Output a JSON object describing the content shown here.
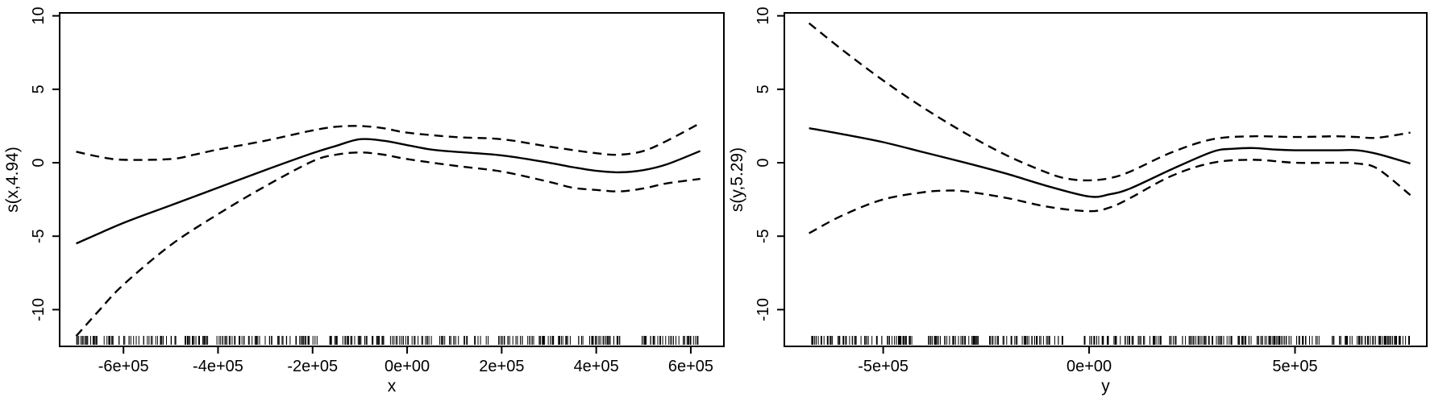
{
  "chart_data": [
    {
      "type": "line",
      "xlabel": "x",
      "ylabel": "s(x,4.94)",
      "xlim": [
        -735000,
        670000
      ],
      "ylim": [
        -12.5,
        10.2
      ],
      "xticks": [
        -600000,
        -400000,
        -200000,
        0,
        200000,
        400000,
        600000
      ],
      "xtick_labels": [
        "-6e+05",
        "-4e+05",
        "-2e+05",
        "0e+00",
        "2e+05",
        "4e+05",
        "6e+05"
      ],
      "yticks": [
        -10,
        -5,
        0,
        5,
        10
      ],
      "ytick_labels": [
        "-10",
        "-5",
        "0",
        "5",
        "10"
      ],
      "grid": false,
      "series": [
        {
          "style": "solid",
          "x": [
            -700000,
            -600000,
            -500000,
            -400000,
            -300000,
            -200000,
            -150000,
            -100000,
            -50000,
            0,
            50000,
            100000,
            200000,
            300000,
            350000,
            400000,
            450000,
            500000,
            550000,
            620000
          ],
          "y": [
            -5.5,
            -4.1,
            -2.9,
            -1.7,
            -0.5,
            0.65,
            1.15,
            1.6,
            1.5,
            1.2,
            0.9,
            0.75,
            0.5,
            0.0,
            -0.3,
            -0.55,
            -0.65,
            -0.5,
            -0.1,
            0.8
          ]
        },
        {
          "style": "dashed",
          "x": [
            -700000,
            -650000,
            -600000,
            -500000,
            -450000,
            -400000,
            -300000,
            -200000,
            -150000,
            -100000,
            -50000,
            0,
            100000,
            200000,
            300000,
            400000,
            450000,
            500000,
            550000,
            620000
          ],
          "y": [
            0.75,
            0.4,
            0.2,
            0.25,
            0.55,
            0.9,
            1.5,
            2.2,
            2.45,
            2.5,
            2.35,
            2.05,
            1.75,
            1.6,
            1.1,
            0.65,
            0.55,
            0.8,
            1.5,
            2.7
          ]
        },
        {
          "style": "dashed",
          "x": [
            -700000,
            -650000,
            -600000,
            -500000,
            -400000,
            -300000,
            -200000,
            -150000,
            -100000,
            -50000,
            0,
            100000,
            200000,
            300000,
            350000,
            400000,
            450000,
            500000,
            550000,
            620000
          ],
          "y": [
            -11.8,
            -10.0,
            -8.3,
            -5.6,
            -3.5,
            -1.6,
            0.1,
            0.55,
            0.7,
            0.55,
            0.25,
            -0.2,
            -0.6,
            -1.3,
            -1.7,
            -1.85,
            -1.95,
            -1.75,
            -1.4,
            -1.1
          ]
        }
      ],
      "rug": {
        "from": -700000,
        "to": 620000,
        "count": 340,
        "seed": 7,
        "gaps": [
          [
            -190000,
            -165000
          ],
          [
            450000,
            470000
          ]
        ]
      }
    },
    {
      "type": "line",
      "xlabel": "y",
      "ylabel": "s(y,5.29)",
      "xlim": [
        -740000,
        820000
      ],
      "ylim": [
        -12.5,
        10.2
      ],
      "xticks": [
        -500000,
        0,
        500000
      ],
      "xtick_labels": [
        "-5e+05",
        "0e+00",
        "5e+05"
      ],
      "yticks": [
        -10,
        -5,
        0,
        5,
        10
      ],
      "ytick_labels": [
        "-10",
        "-5",
        "0",
        "5",
        "10"
      ],
      "grid": false,
      "series": [
        {
          "style": "solid",
          "x": [
            -680000,
            -600000,
            -500000,
            -400000,
            -300000,
            -200000,
            -100000,
            0,
            50000,
            100000,
            200000,
            300000,
            350000,
            400000,
            450000,
            500000,
            600000,
            650000,
            700000,
            780000
          ],
          "y": [
            2.35,
            1.95,
            1.4,
            0.7,
            0.0,
            -0.75,
            -1.6,
            -2.3,
            -2.15,
            -1.75,
            -0.45,
            0.75,
            0.95,
            1.0,
            0.9,
            0.85,
            0.85,
            0.85,
            0.6,
            -0.05
          ]
        },
        {
          "style": "dashed",
          "x": [
            -680000,
            -600000,
            -500000,
            -400000,
            -300000,
            -200000,
            -100000,
            -50000,
            0,
            50000,
            100000,
            200000,
            300000,
            400000,
            500000,
            600000,
            650000,
            700000,
            780000
          ],
          "y": [
            9.5,
            7.7,
            5.6,
            3.7,
            2.0,
            0.5,
            -0.7,
            -1.1,
            -1.2,
            -1.05,
            -0.6,
            0.7,
            1.6,
            1.8,
            1.75,
            1.8,
            1.75,
            1.7,
            2.05
          ]
        },
        {
          "style": "dashed",
          "x": [
            -680000,
            -600000,
            -500000,
            -400000,
            -350000,
            -300000,
            -200000,
            -100000,
            0,
            50000,
            100000,
            200000,
            300000,
            400000,
            500000,
            600000,
            650000,
            700000,
            780000
          ],
          "y": [
            -4.8,
            -3.6,
            -2.5,
            -2.0,
            -1.9,
            -1.95,
            -2.4,
            -3.0,
            -3.3,
            -3.05,
            -2.4,
            -0.9,
            0.0,
            0.2,
            0.0,
            0.0,
            -0.05,
            -0.4,
            -2.2
          ]
        }
      ],
      "rug": {
        "from": -680000,
        "to": 780000,
        "count": 360,
        "seed": 13,
        "gaps": [
          [
            -430000,
            -390000
          ],
          [
            -60000,
            -20000
          ],
          [
            560000,
            590000
          ]
        ]
      }
    }
  ]
}
